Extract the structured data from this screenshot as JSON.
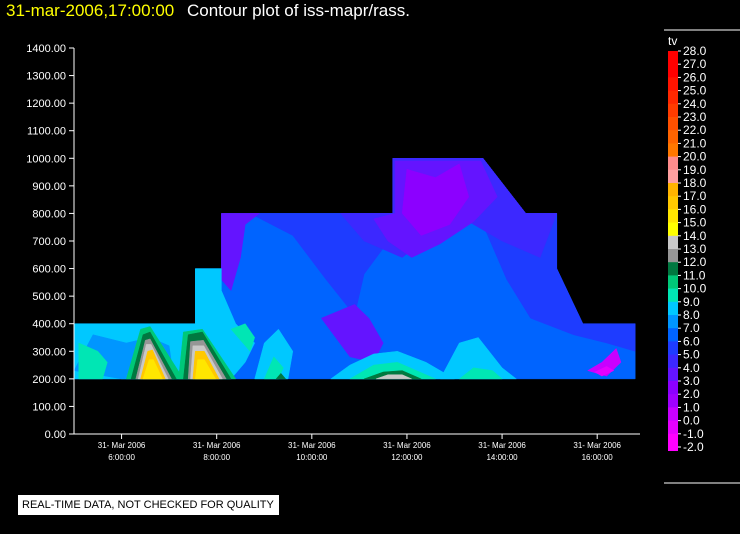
{
  "header": {
    "timestamp": "31-mar-2006,17:00:00",
    "title": "Contour plot of iss-mapr/rass."
  },
  "footer": {
    "note": "REAL-TIME DATA, NOT CHECKED FOR QUALITY"
  },
  "colors": {
    "background": "#000000",
    "text": "#ffffff",
    "timestamp": "#ffff00"
  },
  "chart_data": {
    "type": "heatmap",
    "title": "Contour plot of iss-mapr/rass.",
    "xlabel": "",
    "ylabel": "",
    "x_ticks": [
      {
        "date": "31- Mar 2006",
        "time": "6:00:00"
      },
      {
        "date": "31- Mar 2006",
        "time": "8:00:00"
      },
      {
        "date": "31- Mar 2006",
        "time": "10:00:00"
      },
      {
        "date": "31- Mar 2006",
        "time": "12:00:00"
      },
      {
        "date": "31- Mar 2006",
        "time": "14:00:00"
      },
      {
        "date": "31- Mar 2006",
        "time": "16:00:00"
      }
    ],
    "x_hours": [
      6,
      8,
      10,
      12,
      14,
      16
    ],
    "xlim_hours": [
      5,
      16.9
    ],
    "y_ticks": [
      "0.00",
      "100.00",
      "200.00",
      "300.00",
      "400.00",
      "500.00",
      "600.00",
      "700.00",
      "800.00",
      "900.00",
      "1000.00",
      "1100.00",
      "1200.00",
      "1300.00",
      "1400.00"
    ],
    "ylim": [
      0,
      1400
    ],
    "legend": {
      "title": "tv",
      "placement": "right",
      "levels": [
        "28.0",
        "27.0",
        "26.0",
        "25.0",
        "24.0",
        "23.0",
        "22.0",
        "21.0",
        "20.0",
        "19.0",
        "18.0",
        "17.0",
        "16.0",
        "15.0",
        "14.0",
        "13.0",
        "12.0",
        "11.0",
        "10.0",
        "9.0",
        "8.0",
        "7.0",
        "6.0",
        "5.0",
        "4.0",
        "3.0",
        "2.0",
        "1.0",
        "0.0",
        "-1.0",
        "-2.0"
      ],
      "colors": [
        "#ff0000",
        "#ff0000",
        "#ff1400",
        "#ff2800",
        "#ff3c00",
        "#ff5000",
        "#ff6400",
        "#ff7800",
        "#ff8c8c",
        "#ffa0a0",
        "#ffb400",
        "#ffc800",
        "#ffe600",
        "#ffff00",
        "#c8c8c8",
        "#969696",
        "#007840",
        "#00c878",
        "#00e6b4",
        "#00c8ff",
        "#0096ff",
        "#0064ff",
        "#1e3cff",
        "#3c28ff",
        "#6414ff",
        "#8c00ff",
        "#a000ff",
        "#c800ff",
        "#e600ff",
        "#ff00ff",
        "#ff00ff"
      ]
    },
    "domain_outline": [
      {
        "hour": 5,
        "top": 400
      },
      {
        "hour": 7.6,
        "top": 600
      },
      {
        "hour": 8.1,
        "top": 800
      },
      {
        "hour": 11.7,
        "top": 1000
      },
      {
        "hour": 13.6,
        "top": 800
      },
      {
        "hour": 14.8,
        "top": 400
      },
      {
        "hour": 16.5,
        "top": 400
      }
    ],
    "domain_bottom": 200,
    "regions": [
      {
        "name": "base-blue",
        "color": "#0064ff",
        "polygon": [
          [
            5,
            200
          ],
          [
            5,
            400
          ],
          [
            7.55,
            400
          ],
          [
            7.55,
            600
          ],
          [
            8.1,
            600
          ],
          [
            8.1,
            800
          ],
          [
            11.7,
            800
          ],
          [
            11.7,
            1000
          ],
          [
            13.6,
            1000
          ],
          [
            14.5,
            800
          ],
          [
            15.15,
            800
          ],
          [
            15.15,
            600
          ],
          [
            15.7,
            400
          ],
          [
            16.8,
            400
          ],
          [
            16.8,
            200
          ]
        ]
      },
      {
        "name": "blue-mid-a",
        "color": "#1e3cff",
        "polygon": [
          [
            8.7,
            800
          ],
          [
            9.6,
            720
          ],
          [
            10.3,
            560
          ],
          [
            10.9,
            430
          ],
          [
            11.1,
            580
          ],
          [
            11.7,
            720
          ],
          [
            11.7,
            800
          ]
        ]
      },
      {
        "name": "blue-mid-b",
        "color": "#1e3cff",
        "polygon": [
          [
            12.9,
            820
          ],
          [
            13.6,
            760
          ],
          [
            14.1,
            560
          ],
          [
            14.6,
            420
          ],
          [
            15.5,
            360
          ],
          [
            16.2,
            330
          ],
          [
            16.8,
            300
          ],
          [
            16.8,
            400
          ],
          [
            15.7,
            400
          ],
          [
            15.15,
            600
          ],
          [
            15.15,
            800
          ],
          [
            14.5,
            800
          ],
          [
            13.6,
            1000
          ]
        ]
      },
      {
        "name": "purple-top",
        "color": "#3c28ff",
        "polygon": [
          [
            11.7,
            1000
          ],
          [
            13.6,
            1000
          ],
          [
            14.5,
            800
          ],
          [
            15.15,
            800
          ],
          [
            14.8,
            640
          ],
          [
            14.0,
            700
          ],
          [
            13.2,
            780
          ],
          [
            12.5,
            720
          ],
          [
            11.9,
            640
          ],
          [
            11.1,
            700
          ],
          [
            10.6,
            800
          ],
          [
            11.7,
            800
          ]
        ]
      },
      {
        "name": "violet-top",
        "color": "#6414ff",
        "polygon": [
          [
            11.75,
            990
          ],
          [
            13.55,
            990
          ],
          [
            13.9,
            860
          ],
          [
            13.4,
            770
          ],
          [
            12.7,
            690
          ],
          [
            12.1,
            640
          ],
          [
            11.6,
            700
          ],
          [
            11.3,
            780
          ],
          [
            11.75,
            800
          ]
        ]
      },
      {
        "name": "violet-left",
        "color": "#6414ff",
        "polygon": [
          [
            8.1,
            800
          ],
          [
            8.1,
            560
          ],
          [
            8.3,
            520
          ],
          [
            8.5,
            640
          ],
          [
            8.6,
            760
          ],
          [
            8.9,
            800
          ]
        ]
      },
      {
        "name": "purple-1014",
        "color": "#8c00ff",
        "polygon": [
          [
            12.0,
            960
          ],
          [
            12.6,
            930
          ],
          [
            13.1,
            980
          ],
          [
            13.3,
            860
          ],
          [
            12.9,
            760
          ],
          [
            12.3,
            720
          ],
          [
            11.9,
            800
          ]
        ]
      },
      {
        "name": "violet-low",
        "color": "#6414ff",
        "polygon": [
          [
            10.2,
            420
          ],
          [
            10.8,
            280
          ],
          [
            11.3,
            260
          ],
          [
            11.5,
            330
          ],
          [
            11.2,
            420
          ],
          [
            10.9,
            470
          ]
        ]
      },
      {
        "name": "magenta-right",
        "color": "#c800ff",
        "polygon": [
          [
            15.8,
            230
          ],
          [
            16.1,
            260
          ],
          [
            16.4,
            310
          ],
          [
            16.5,
            260
          ],
          [
            16.2,
            210
          ]
        ]
      },
      {
        "name": "magenta-core",
        "color": "#e600ff",
        "polygon": [
          [
            15.95,
            225
          ],
          [
            16.2,
            245
          ],
          [
            16.35,
            230
          ],
          [
            16.1,
            210
          ]
        ]
      },
      {
        "name": "sky-left",
        "color": "#00c8ff",
        "polygon": [
          [
            5,
            200
          ],
          [
            5,
            400
          ],
          [
            7.55,
            400
          ],
          [
            7.55,
            600
          ],
          [
            8.1,
            600
          ],
          [
            8.1,
            520
          ],
          [
            8.4,
            400
          ],
          [
            8.8,
            330
          ],
          [
            8.6,
            260
          ],
          [
            8.3,
            200
          ]
        ]
      },
      {
        "name": "aqua-left",
        "color": "#0096ff",
        "polygon": [
          [
            5,
            230
          ],
          [
            5.4,
            360
          ],
          [
            6.1,
            330
          ],
          [
            6.6,
            350
          ],
          [
            7.0,
            320
          ],
          [
            7.1,
            200
          ],
          [
            6.0,
            200
          ]
        ]
      },
      {
        "name": "cyan-left",
        "color": "#00e6b4",
        "polygon": [
          [
            5.1,
            200
          ],
          [
            5.1,
            330
          ],
          [
            5.5,
            300
          ],
          [
            5.7,
            260
          ],
          [
            5.6,
            200
          ]
        ]
      },
      {
        "name": "teal-peak-a",
        "color": "#00c878",
        "polygon": [
          [
            6.1,
            200
          ],
          [
            6.4,
            380
          ],
          [
            6.6,
            390
          ],
          [
            7.3,
            200
          ]
        ]
      },
      {
        "name": "green-peak-a",
        "color": "#007840",
        "polygon": [
          [
            6.2,
            200
          ],
          [
            6.45,
            360
          ],
          [
            6.6,
            370
          ],
          [
            7.15,
            200
          ]
        ]
      },
      {
        "name": "gray-peak-a",
        "color": "#969696",
        "polygon": [
          [
            6.3,
            200
          ],
          [
            6.5,
            340
          ],
          [
            6.6,
            345
          ],
          [
            7.05,
            200
          ]
        ]
      },
      {
        "name": "silver-peak-a",
        "color": "#c8c8c8",
        "polygon": [
          [
            6.35,
            200
          ],
          [
            6.52,
            325
          ],
          [
            6.62,
            325
          ],
          [
            6.98,
            200
          ]
        ]
      },
      {
        "name": "orange-peak-a",
        "color": "#ffc800",
        "polygon": [
          [
            6.4,
            200
          ],
          [
            6.55,
            300
          ],
          [
            6.65,
            305
          ],
          [
            6.92,
            200
          ]
        ]
      },
      {
        "name": "yellow-peak-a",
        "color": "#ffe600",
        "polygon": [
          [
            6.45,
            200
          ],
          [
            6.58,
            270
          ],
          [
            6.67,
            270
          ],
          [
            6.86,
            200
          ]
        ]
      },
      {
        "name": "teal-peak-b",
        "color": "#00c878",
        "polygon": [
          [
            7.2,
            200
          ],
          [
            7.3,
            370
          ],
          [
            7.7,
            380
          ],
          [
            8.4,
            200
          ]
        ]
      },
      {
        "name": "green-peak-b",
        "color": "#007840",
        "polygon": [
          [
            7.3,
            200
          ],
          [
            7.4,
            360
          ],
          [
            7.7,
            370
          ],
          [
            8.3,
            200
          ]
        ]
      },
      {
        "name": "gray-peak-b",
        "color": "#969696",
        "polygon": [
          [
            7.4,
            200
          ],
          [
            7.45,
            335
          ],
          [
            7.72,
            340
          ],
          [
            8.2,
            200
          ]
        ]
      },
      {
        "name": "silver-peak-b",
        "color": "#c8c8c8",
        "polygon": [
          [
            7.45,
            200
          ],
          [
            7.5,
            320
          ],
          [
            7.73,
            320
          ],
          [
            8.12,
            200
          ]
        ]
      },
      {
        "name": "orange-peak-b",
        "color": "#ffc800",
        "polygon": [
          [
            7.5,
            200
          ],
          [
            7.55,
            300
          ],
          [
            7.74,
            300
          ],
          [
            8.05,
            200
          ]
        ]
      },
      {
        "name": "yellow-peak-b",
        "color": "#ffe600",
        "polygon": [
          [
            7.55,
            200
          ],
          [
            7.6,
            270
          ],
          [
            7.74,
            270
          ],
          [
            7.98,
            200
          ]
        ]
      },
      {
        "name": "cyan-mid-8",
        "color": "#00e6b4",
        "polygon": [
          [
            8.3,
            380
          ],
          [
            8.6,
            400
          ],
          [
            8.8,
            350
          ],
          [
            8.7,
            300
          ]
        ]
      },
      {
        "name": "sky-mid-10",
        "color": "#00c8ff",
        "polygon": [
          [
            8.8,
            200
          ],
          [
            9.0,
            330
          ],
          [
            9.3,
            380
          ],
          [
            9.6,
            300
          ],
          [
            9.5,
            200
          ]
        ]
      },
      {
        "name": "teal-mid-10",
        "color": "#00e6b4",
        "polygon": [
          [
            9.0,
            200
          ],
          [
            9.2,
            280
          ],
          [
            9.4,
            240
          ],
          [
            9.3,
            200
          ]
        ]
      },
      {
        "name": "green-mid-10",
        "color": "#007840",
        "polygon": [
          [
            9.25,
            200
          ],
          [
            9.35,
            220
          ],
          [
            9.45,
            200
          ]
        ]
      },
      {
        "name": "sky-low-12",
        "color": "#00c8ff",
        "polygon": [
          [
            10.4,
            200
          ],
          [
            10.8,
            250
          ],
          [
            11.3,
            290
          ],
          [
            11.8,
            300
          ],
          [
            12.4,
            260
          ],
          [
            13.0,
            200
          ]
        ]
      },
      {
        "name": "teal-low-12",
        "color": "#00e6b4",
        "polygon": [
          [
            10.8,
            200
          ],
          [
            11.3,
            250
          ],
          [
            11.8,
            260
          ],
          [
            12.2,
            230
          ],
          [
            12.6,
            200
          ]
        ]
      },
      {
        "name": "green-low-12",
        "color": "#007840",
        "polygon": [
          [
            11.1,
            200
          ],
          [
            11.5,
            225
          ],
          [
            11.9,
            230
          ],
          [
            12.3,
            200
          ]
        ]
      },
      {
        "name": "silver-low-12",
        "color": "#c8c8c8",
        "polygon": [
          [
            11.35,
            200
          ],
          [
            11.6,
            215
          ],
          [
            11.9,
            215
          ],
          [
            12.1,
            200
          ]
        ]
      },
      {
        "name": "sky-low-14",
        "color": "#00c8ff",
        "polygon": [
          [
            12.7,
            200
          ],
          [
            13.1,
            330
          ],
          [
            13.5,
            350
          ],
          [
            14.0,
            240
          ],
          [
            14.3,
            200
          ]
        ]
      },
      {
        "name": "teal-low-14",
        "color": "#00e6b4",
        "polygon": [
          [
            13.1,
            200
          ],
          [
            13.4,
            240
          ],
          [
            13.8,
            230
          ],
          [
            14.0,
            200
          ]
        ]
      }
    ]
  }
}
